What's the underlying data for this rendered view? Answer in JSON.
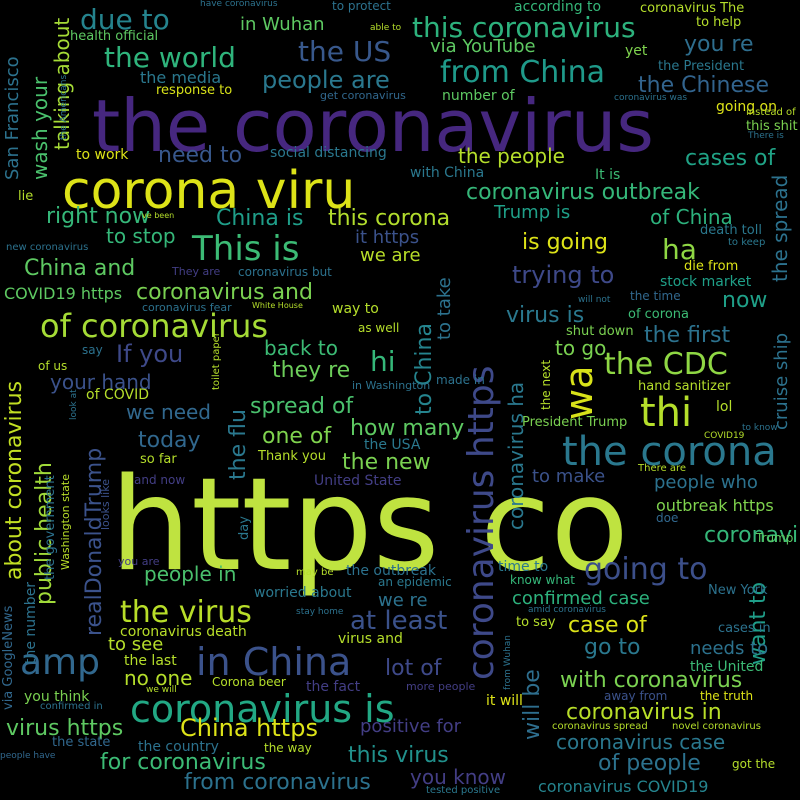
{
  "words": [
    "https co",
    "the coronavirus",
    "corona viru",
    "coronavirus https",
    "coronavirus is",
    "the corona",
    "in China",
    "of coronavirus",
    "amp",
    "thi",
    "wa",
    "This is",
    "the virus",
    "the CDC",
    "from China",
    "this coronavirus",
    "coronavirus outbreak",
    "the world",
    "due to",
    "the US",
    "people are",
    "the Chinese",
    "you re",
    "cases of",
    "the spread",
    "coronavirus and",
    "China is",
    "this corona",
    "going to",
    "at least",
    "coronavirus in",
    "with coronavirus",
    "China https",
    "virus https",
    "for coronavirus",
    "from coronavirus",
    "this virus",
    "you know",
    "coronavirus case",
    "of people",
    "coronavirus COVID19",
    "case of",
    "go to",
    "want to",
    "lot of",
    "realDonaldTrump",
    "the flu",
    "to China",
    "public health",
    "about coronavirus",
    "talking about",
    "wash your",
    "San Francisco",
    "right now",
    "to stop",
    "China and",
    "COVID19 https",
    "need to",
    "If you",
    "your hand",
    "we need",
    "today",
    "one of",
    "how many",
    "the new",
    "the USA",
    "spread of",
    "back to",
    "they re",
    "hi",
    "we are",
    "it https",
    "is going",
    "ha",
    "trying to",
    "to take",
    "virus is",
    "to go",
    "coronavirus ha",
    "will be",
    "the first",
    "now",
    "stock market",
    "cruise ship",
    "of China",
    "Trump is",
    "the people",
    "via YouTube",
    "yet",
    "the President",
    "in Wuhan",
    "according to",
    "the media",
    "health official",
    "response to",
    "get coronavirus",
    "number of",
    "going on",
    "instead of",
    "this shit",
    "social distancing",
    "to work",
    "with China",
    "It is",
    "death toll",
    "to keep",
    "die from",
    "the time",
    "will not",
    "shut down",
    "of corona",
    "to make",
    "people who",
    "outbreak https",
    "doe",
    "coronavirus to",
    "Trump",
    "New York",
    "needs to",
    "cases in",
    "the United",
    "away from",
    "the truth",
    "coronavirus spread",
    "novel coronavirus",
    "got the",
    "positive for",
    "it will",
    "tested positive",
    "amid coronavirus",
    "time to",
    "know what",
    "worried about",
    "stay home",
    "Corona beer",
    "the fact",
    "more people",
    "to see",
    "the last",
    "no one",
    "you think",
    "the state",
    "the country",
    "the way",
    "people have",
    "confirmed case",
    "coronavirus death",
    "virus and",
    "to say",
    "people in",
    "the outbreak",
    "an epidemic",
    "confirmed in",
    "via GoogleNews",
    "the number",
    "Washington state",
    "the government",
    "looks like",
    "day",
    "so far",
    "Thank you",
    "United State",
    "and now",
    "you are",
    "we will",
    "may be",
    "made in",
    "from Wuhan",
    "the next",
    "President Trump",
    "hand sanitizer",
    "lol",
    "to know",
    "COVID19",
    "There are",
    "There is",
    "toilet paper",
    "in Washington",
    "as well",
    "say",
    "of us",
    "of COVID",
    "look at",
    "lie",
    "to help",
    "able to",
    "to protect",
    "have coronavirus",
    "coronavirus The",
    "coronavirus was",
    "the Americans",
    "new coronavirus",
    "They are",
    "coronavirus but",
    "coronavirus fear",
    "White House",
    "way to",
    "ve been",
    "we re",
    "in the"
  ]
}
